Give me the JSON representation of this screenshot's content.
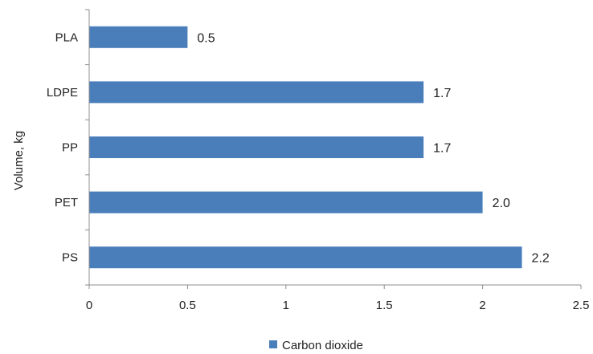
{
  "chart_data": {
    "type": "bar",
    "orientation": "horizontal",
    "categories": [
      "PLA",
      "LDPE",
      "PP",
      "PET",
      "PS"
    ],
    "series": [
      {
        "name": "Carbon dioxide",
        "values": [
          0.5,
          1.7,
          1.7,
          2.0,
          2.2
        ],
        "data_labels": [
          "0.5",
          "1.7",
          "1.7",
          "2.0",
          "2.2"
        ],
        "color": "#4a7ebb"
      }
    ],
    "xlim": [
      0,
      2.5
    ],
    "x_ticks": [
      0,
      0.5,
      1,
      1.5,
      2,
      2.5
    ],
    "x_tick_labels": [
      "0",
      "0.5",
      "1",
      "1.5",
      "2",
      "2.5"
    ],
    "ylabel": "Volume,  kg",
    "grid": false,
    "legend_position": "bottom"
  }
}
